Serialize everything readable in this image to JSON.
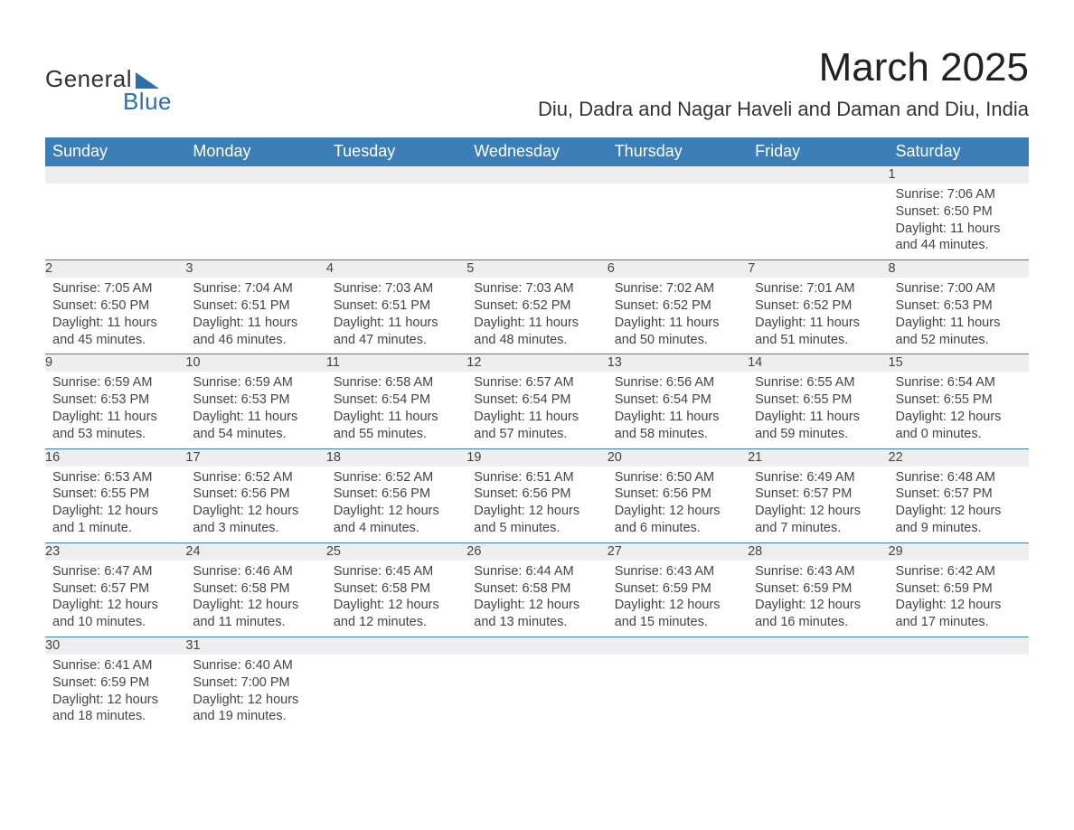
{
  "logo": {
    "word1": "General",
    "word2": "Blue",
    "accent_color": "#2f6fa7"
  },
  "title": "March 2025",
  "location": "Diu, Dadra and Nagar Haveli and Daman and Diu, India",
  "colors": {
    "header_bg": "#3c7fb8",
    "header_text": "#ffffff",
    "daynum_bg": "#eeeeee",
    "row_border": "#3c7fb8",
    "body_text": "#444444",
    "page_bg": "#ffffff"
  },
  "typography": {
    "title_fontsize_pt": 33,
    "location_fontsize_pt": 17,
    "weekday_fontsize_pt": 14,
    "daynum_fontsize_pt": 13,
    "cell_fontsize_pt": 11
  },
  "weekdays": [
    "Sunday",
    "Monday",
    "Tuesday",
    "Wednesday",
    "Thursday",
    "Friday",
    "Saturday"
  ],
  "weeks": [
    [
      null,
      null,
      null,
      null,
      null,
      null,
      {
        "n": "1",
        "sr": "7:06 AM",
        "ss": "6:50 PM",
        "dl": "11 hours and 44 minutes."
      }
    ],
    [
      {
        "n": "2",
        "sr": "7:05 AM",
        "ss": "6:50 PM",
        "dl": "11 hours and 45 minutes."
      },
      {
        "n": "3",
        "sr": "7:04 AM",
        "ss": "6:51 PM",
        "dl": "11 hours and 46 minutes."
      },
      {
        "n": "4",
        "sr": "7:03 AM",
        "ss": "6:51 PM",
        "dl": "11 hours and 47 minutes."
      },
      {
        "n": "5",
        "sr": "7:03 AM",
        "ss": "6:52 PM",
        "dl": "11 hours and 48 minutes."
      },
      {
        "n": "6",
        "sr": "7:02 AM",
        "ss": "6:52 PM",
        "dl": "11 hours and 50 minutes."
      },
      {
        "n": "7",
        "sr": "7:01 AM",
        "ss": "6:52 PM",
        "dl": "11 hours and 51 minutes."
      },
      {
        "n": "8",
        "sr": "7:00 AM",
        "ss": "6:53 PM",
        "dl": "11 hours and 52 minutes."
      }
    ],
    [
      {
        "n": "9",
        "sr": "6:59 AM",
        "ss": "6:53 PM",
        "dl": "11 hours and 53 minutes."
      },
      {
        "n": "10",
        "sr": "6:59 AM",
        "ss": "6:53 PM",
        "dl": "11 hours and 54 minutes."
      },
      {
        "n": "11",
        "sr": "6:58 AM",
        "ss": "6:54 PM",
        "dl": "11 hours and 55 minutes."
      },
      {
        "n": "12",
        "sr": "6:57 AM",
        "ss": "6:54 PM",
        "dl": "11 hours and 57 minutes."
      },
      {
        "n": "13",
        "sr": "6:56 AM",
        "ss": "6:54 PM",
        "dl": "11 hours and 58 minutes."
      },
      {
        "n": "14",
        "sr": "6:55 AM",
        "ss": "6:55 PM",
        "dl": "11 hours and 59 minutes."
      },
      {
        "n": "15",
        "sr": "6:54 AM",
        "ss": "6:55 PM",
        "dl": "12 hours and 0 minutes."
      }
    ],
    [
      {
        "n": "16",
        "sr": "6:53 AM",
        "ss": "6:55 PM",
        "dl": "12 hours and 1 minute."
      },
      {
        "n": "17",
        "sr": "6:52 AM",
        "ss": "6:56 PM",
        "dl": "12 hours and 3 minutes."
      },
      {
        "n": "18",
        "sr": "6:52 AM",
        "ss": "6:56 PM",
        "dl": "12 hours and 4 minutes."
      },
      {
        "n": "19",
        "sr": "6:51 AM",
        "ss": "6:56 PM",
        "dl": "12 hours and 5 minutes."
      },
      {
        "n": "20",
        "sr": "6:50 AM",
        "ss": "6:56 PM",
        "dl": "12 hours and 6 minutes."
      },
      {
        "n": "21",
        "sr": "6:49 AM",
        "ss": "6:57 PM",
        "dl": "12 hours and 7 minutes."
      },
      {
        "n": "22",
        "sr": "6:48 AM",
        "ss": "6:57 PM",
        "dl": "12 hours and 9 minutes."
      }
    ],
    [
      {
        "n": "23",
        "sr": "6:47 AM",
        "ss": "6:57 PM",
        "dl": "12 hours and 10 minutes."
      },
      {
        "n": "24",
        "sr": "6:46 AM",
        "ss": "6:58 PM",
        "dl": "12 hours and 11 minutes."
      },
      {
        "n": "25",
        "sr": "6:45 AM",
        "ss": "6:58 PM",
        "dl": "12 hours and 12 minutes."
      },
      {
        "n": "26",
        "sr": "6:44 AM",
        "ss": "6:58 PM",
        "dl": "12 hours and 13 minutes."
      },
      {
        "n": "27",
        "sr": "6:43 AM",
        "ss": "6:59 PM",
        "dl": "12 hours and 15 minutes."
      },
      {
        "n": "28",
        "sr": "6:43 AM",
        "ss": "6:59 PM",
        "dl": "12 hours and 16 minutes."
      },
      {
        "n": "29",
        "sr": "6:42 AM",
        "ss": "6:59 PM",
        "dl": "12 hours and 17 minutes."
      }
    ],
    [
      {
        "n": "30",
        "sr": "6:41 AM",
        "ss": "6:59 PM",
        "dl": "12 hours and 18 minutes."
      },
      {
        "n": "31",
        "sr": "6:40 AM",
        "ss": "7:00 PM",
        "dl": "12 hours and 19 minutes."
      },
      null,
      null,
      null,
      null,
      null
    ]
  ],
  "labels": {
    "sunrise": "Sunrise:",
    "sunset": "Sunset:",
    "daylight": "Daylight:"
  }
}
